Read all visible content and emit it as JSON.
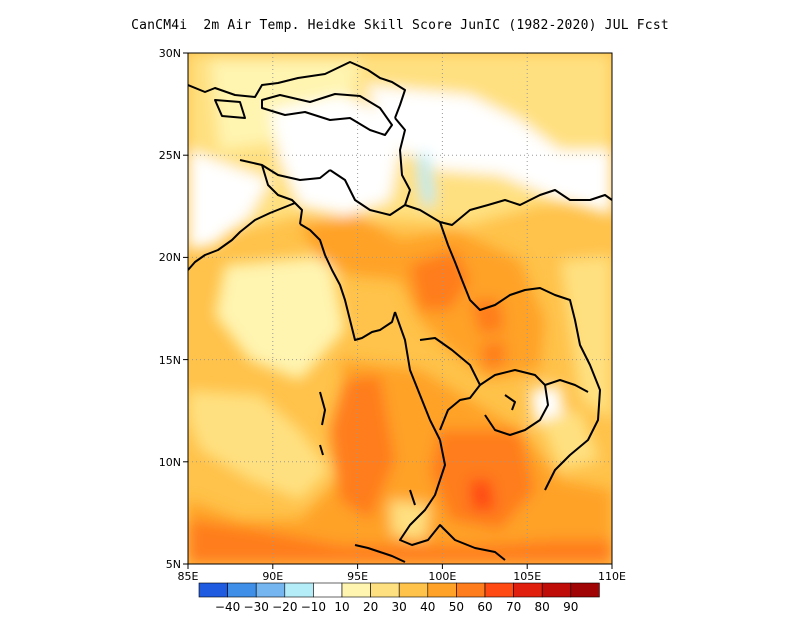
{
  "title": "CanCM4i  2m Air Temp. Heidke Skill Score JunIC (1982-2020) JUL Fcst",
  "lat_labels": [
    "30N",
    "25N",
    "20N",
    "15N",
    "10N",
    "5N"
  ],
  "lon_labels": [
    "85E",
    "90E",
    "95E",
    "100E",
    "105E",
    "110E"
  ],
  "map": {
    "lon_range": [
      85,
      110
    ],
    "lat_range": [
      5,
      30
    ],
    "grid": "dotted"
  },
  "colorbar": {
    "colors": [
      "#1f5be0",
      "#3f8fe8",
      "#76b6f0",
      "#b4ecf8",
      "#ffffff",
      "#fff4b0",
      "#ffe080",
      "#ffc24a",
      "#ffa227",
      "#ff7d1c",
      "#ff4a14",
      "#e0200c",
      "#bf0c08",
      "#a00404"
    ],
    "labels": [
      "-40",
      "-30",
      "-20",
      "-10",
      "10",
      "20",
      "30",
      "40",
      "50",
      "60",
      "70",
      "80",
      "90"
    ]
  }
}
